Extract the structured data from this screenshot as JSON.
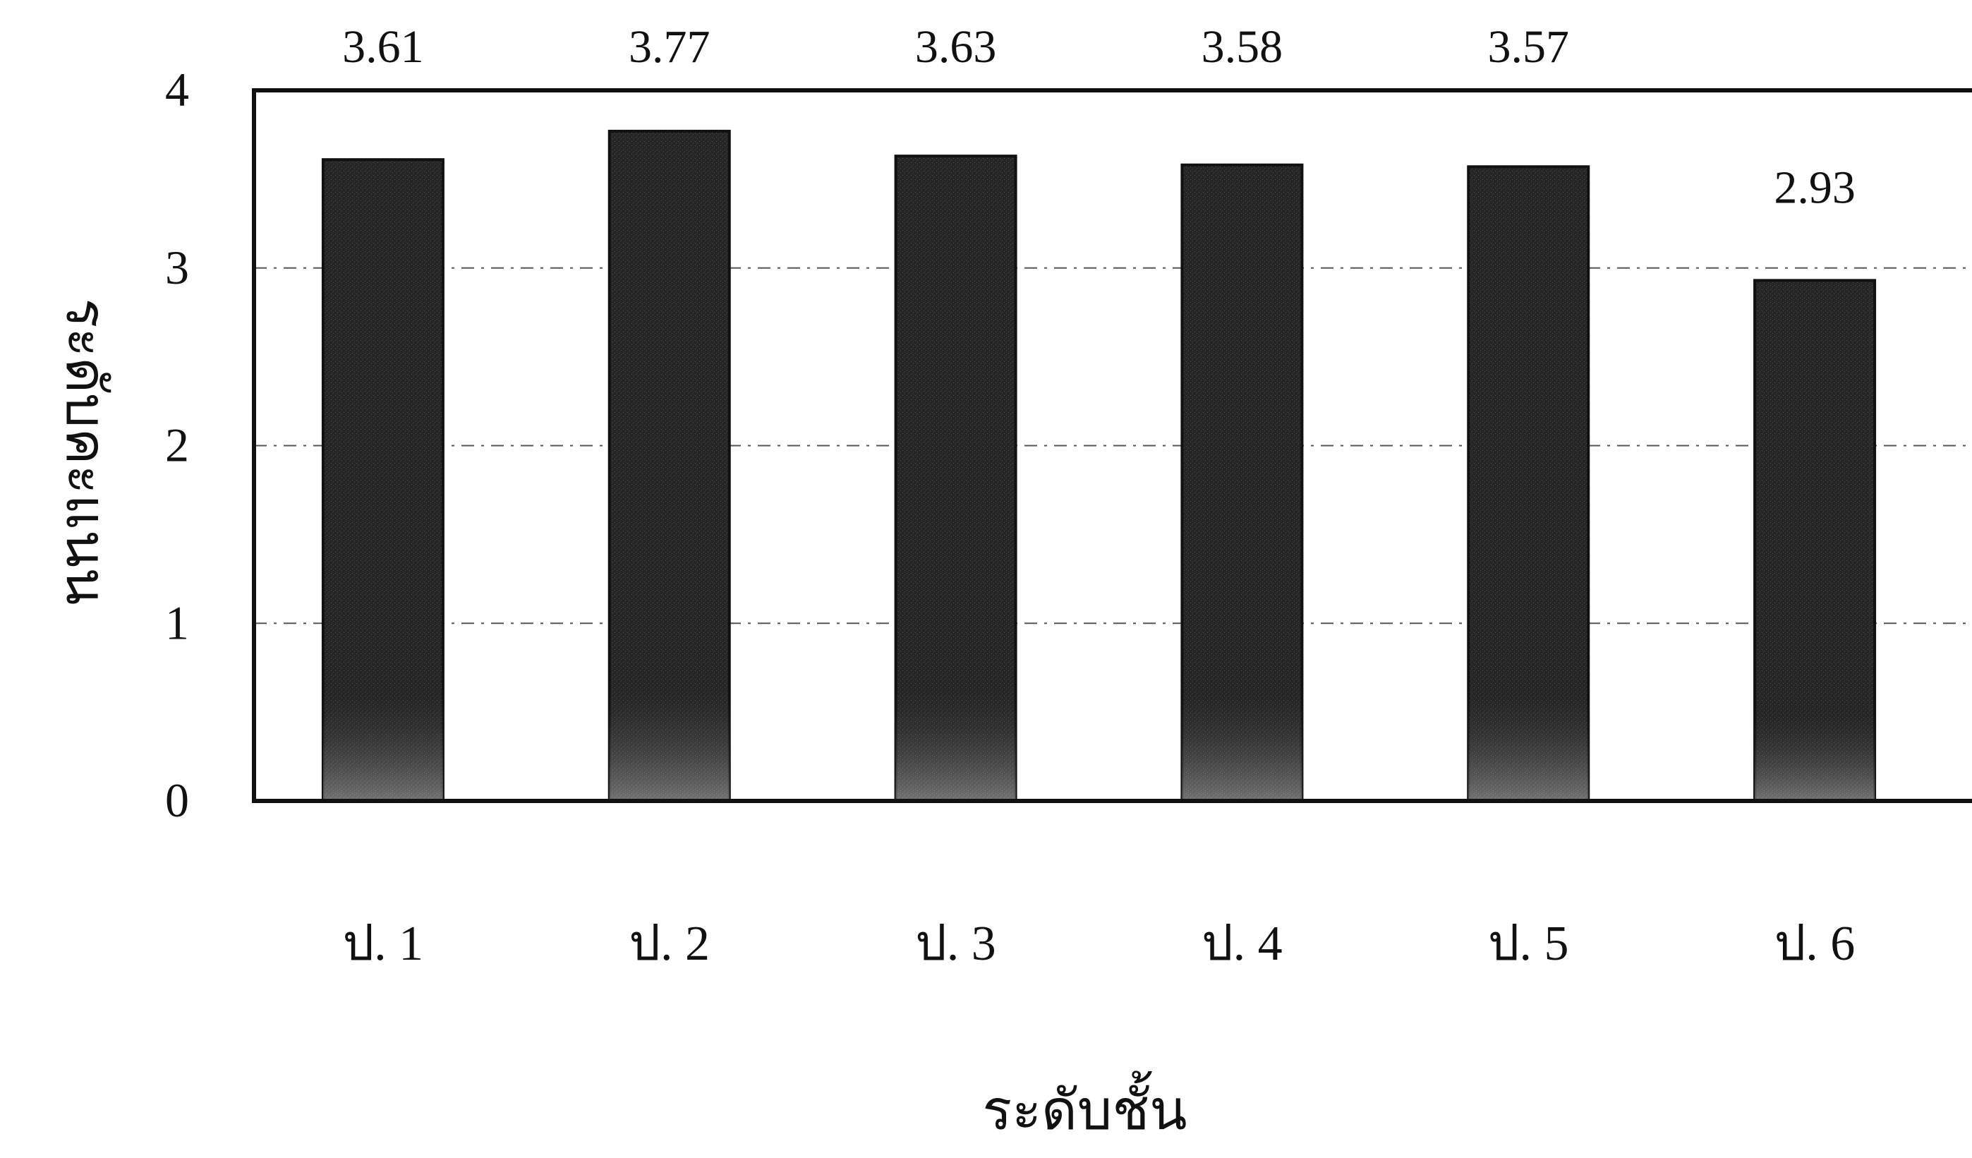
{
  "chart_data": {
    "type": "bar",
    "categories": [
      "ป. 1",
      "ป. 2",
      "ป. 3",
      "ป. 4",
      "ป. 5",
      "ป. 6"
    ],
    "values": [
      3.61,
      3.77,
      3.63,
      3.58,
      3.57,
      2.93
    ],
    "data_labels": [
      "3.61",
      "3.77",
      "3.63",
      "3.58",
      "3.57",
      "2.93"
    ],
    "ylim": [
      0,
      4
    ],
    "yticks": [
      "0",
      "1",
      "2",
      "3",
      "4"
    ],
    "xlabel": "ระดับชั้น",
    "ylabel": "ระดับคะแนน",
    "title": "",
    "grid": true,
    "legend": "none",
    "bar_color": "#2b2b2b",
    "background": "#ffffff"
  }
}
